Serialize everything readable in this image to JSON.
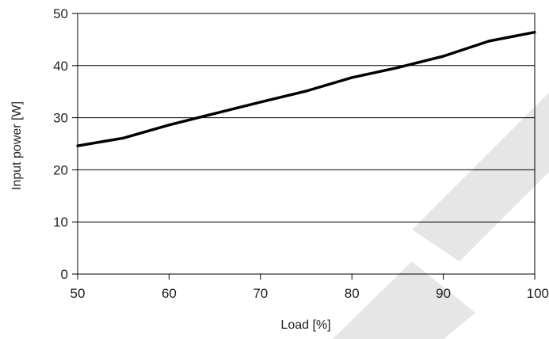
{
  "chart_data": {
    "type": "line",
    "title": "",
    "xlabel": "Load [%]",
    "ylabel": "Input power [W]",
    "xlim": [
      50,
      100
    ],
    "ylim": [
      0,
      50
    ],
    "x_ticks": [
      50,
      60,
      70,
      80,
      90,
      100
    ],
    "y_ticks": [
      0,
      10,
      20,
      30,
      40,
      50
    ],
    "grid": "horizontal",
    "legend": "none",
    "line_color": "#000000",
    "watermark_color": "#e6e6e6",
    "series": [
      {
        "x": [
          50,
          55,
          60,
          65,
          70,
          75,
          80,
          85,
          90,
          95,
          100
        ],
        "values": [
          24.6,
          26.1,
          28.6,
          30.8,
          33.0,
          35.1,
          37.7,
          39.6,
          41.8,
          44.7,
          46.4
        ]
      }
    ]
  }
}
